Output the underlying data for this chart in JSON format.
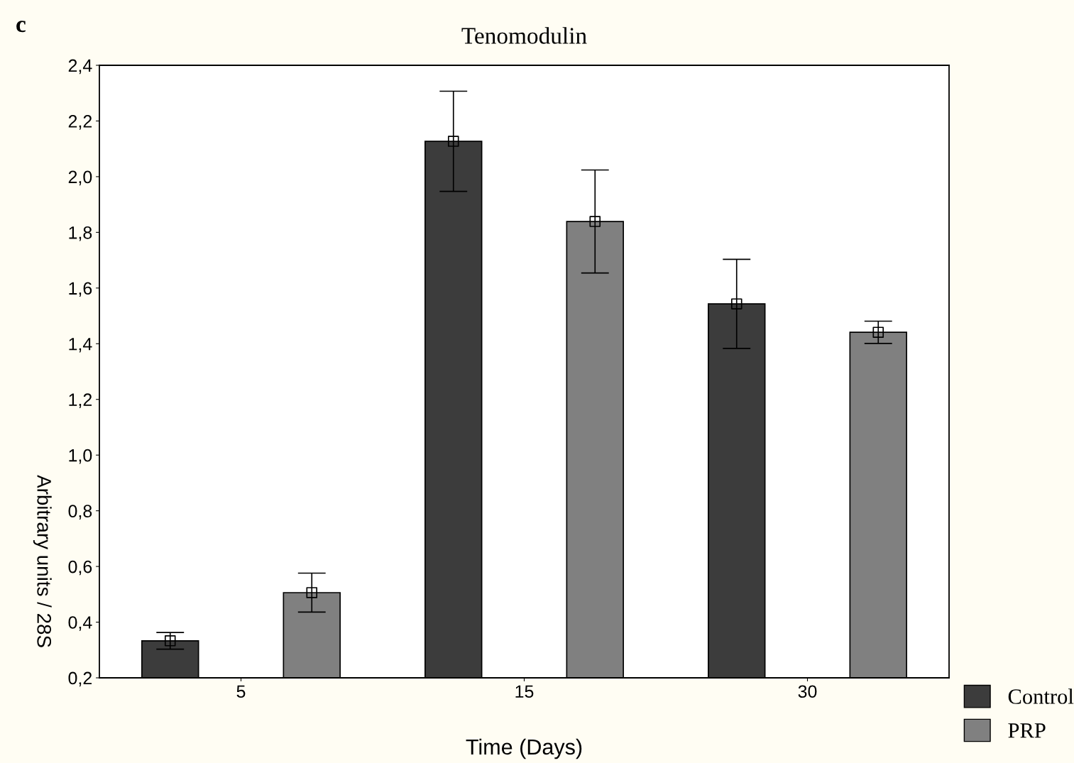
{
  "chart_data": {
    "type": "bar",
    "title": "Tenomodulin",
    "xlabel": "Time (Days)",
    "ylabel": "Arbitrary units / 28S",
    "annotations": [
      "c"
    ],
    "categories": [
      "5",
      "15",
      "30"
    ],
    "series": [
      {
        "name": "Control",
        "color": "#3c3c3c",
        "values": [
          0.333,
          2.127,
          1.543
        ]
      },
      {
        "name": "PRP",
        "color": "#808080",
        "values": [
          0.506,
          1.839,
          1.441
        ]
      },
      {
        "type": "scatter",
        "color": "#000000",
        "marker": "square",
        "x": [
          "5",
          "15",
          "30"
        ],
        "values": [
          0.333,
          2.127,
          1.543
        ],
        "errors": [
          0.03,
          0.18,
          0.16
        ]
      },
      {
        "type": "scatter",
        "color": "#000000",
        "marker": "square",
        "x": [
          "5",
          "15",
          "30"
        ],
        "values": [
          0.506,
          1.839,
          1.441
        ],
        "errors": [
          0.07,
          0.185,
          0.04
        ]
      }
    ],
    "ylim": [
      0.2,
      2.4
    ],
    "yticks": [
      {
        "value": 0.2,
        "label": "0,2"
      },
      {
        "value": 0.4,
        "label": "0,4"
      },
      {
        "value": 0.6,
        "label": "0,6"
      },
      {
        "value": 0.8,
        "label": "0,8"
      },
      {
        "value": 1.0,
        "label": "1,0"
      },
      {
        "value": 1.2,
        "label": "1,2"
      },
      {
        "value": 1.4,
        "label": "1,4"
      },
      {
        "value": 1.6,
        "label": "1,6"
      },
      {
        "value": 1.8,
        "label": "1,8"
      },
      {
        "value": 2.0,
        "label": "2,0"
      },
      {
        "value": 2.2,
        "label": "2,2"
      },
      {
        "value": 2.4,
        "label": "2,4"
      }
    ],
    "legend": "bottom right",
    "grid": false
  }
}
